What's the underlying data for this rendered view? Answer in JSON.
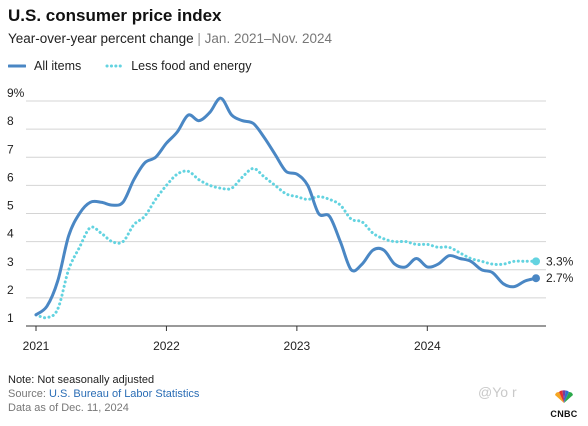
{
  "header": {
    "title": "U.S. consumer price index",
    "subtitle": "Year-over-year percent change",
    "separator": "|",
    "date_range": "Jan. 2021–Nov. 2024"
  },
  "legend": {
    "all_items": "All items",
    "core": "Less food and energy"
  },
  "footer": {
    "note": "Note: Not seasonally adjusted",
    "source_label": "Source:",
    "source_link": "U.S. Bureau of Labor Statistics",
    "as_of": "Data as of Dec. 11, 2024"
  },
  "watermark": "@Yo  r",
  "logo": {
    "word": "CNBC"
  },
  "colors": {
    "all_items": "#4a87c4",
    "core": "#63d3e0",
    "grid": "#d4d4d4",
    "text": "#222222",
    "link": "#2a6db5"
  },
  "chart_data": {
    "type": "line",
    "xlim": [
      "2021-01",
      "2024-11"
    ],
    "ylim": [
      1,
      9
    ],
    "ytick_labels": [
      "1",
      "2",
      "3",
      "4",
      "5",
      "6",
      "7",
      "8",
      "9%"
    ],
    "xtick_labels": [
      "2021",
      "2022",
      "2023",
      "2024"
    ],
    "grid": true,
    "legend_position": "top-left",
    "x": [
      "2021-01",
      "2021-02",
      "2021-03",
      "2021-04",
      "2021-05",
      "2021-06",
      "2021-07",
      "2021-08",
      "2021-09",
      "2021-10",
      "2021-11",
      "2021-12",
      "2022-01",
      "2022-02",
      "2022-03",
      "2022-04",
      "2022-05",
      "2022-06",
      "2022-07",
      "2022-08",
      "2022-09",
      "2022-10",
      "2022-11",
      "2022-12",
      "2023-01",
      "2023-02",
      "2023-03",
      "2023-04",
      "2023-05",
      "2023-06",
      "2023-07",
      "2023-08",
      "2023-09",
      "2023-10",
      "2023-11",
      "2023-12",
      "2024-01",
      "2024-02",
      "2024-03",
      "2024-04",
      "2024-05",
      "2024-06",
      "2024-07",
      "2024-08",
      "2024-09",
      "2024-10",
      "2024-11"
    ],
    "series": [
      {
        "name": "All items",
        "style": "solid",
        "values": [
          1.4,
          1.7,
          2.6,
          4.2,
          5.0,
          5.4,
          5.4,
          5.3,
          5.4,
          6.2,
          6.8,
          7.0,
          7.5,
          7.9,
          8.5,
          8.3,
          8.6,
          9.1,
          8.5,
          8.3,
          8.2,
          7.7,
          7.1,
          6.5,
          6.4,
          6.0,
          5.0,
          4.9,
          4.0,
          3.0,
          3.2,
          3.7,
          3.7,
          3.2,
          3.1,
          3.4,
          3.1,
          3.2,
          3.5,
          3.4,
          3.3,
          3.0,
          2.9,
          2.5,
          2.4,
          2.6,
          2.7
        ],
        "end_label": "2.7%"
      },
      {
        "name": "Less food and energy",
        "style": "dotted",
        "values": [
          1.4,
          1.3,
          1.6,
          3.0,
          3.8,
          4.5,
          4.3,
          4.0,
          4.0,
          4.6,
          4.9,
          5.5,
          6.0,
          6.4,
          6.5,
          6.2,
          6.0,
          5.9,
          5.9,
          6.3,
          6.6,
          6.3,
          6.0,
          5.7,
          5.6,
          5.5,
          5.6,
          5.5,
          5.3,
          4.8,
          4.7,
          4.3,
          4.1,
          4.0,
          4.0,
          3.9,
          3.9,
          3.8,
          3.8,
          3.6,
          3.4,
          3.3,
          3.2,
          3.2,
          3.3,
          3.3,
          3.3
        ],
        "end_label": "3.3%"
      }
    ]
  }
}
